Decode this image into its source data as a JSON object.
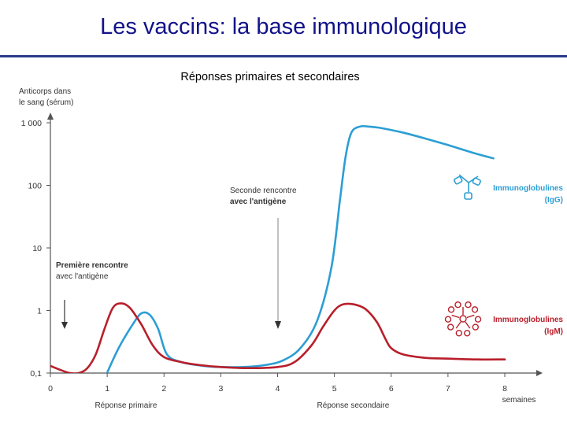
{
  "slide": {
    "title": "Les vaccins: la base immunologique"
  },
  "chart_data": {
    "type": "line",
    "title": "Réponses primaires et secondaires",
    "ylabel": [
      "Anticorps dans",
      "le sang (sérum)"
    ],
    "xlabel": "semaines",
    "y_scale": "log",
    "ylim": [
      0.1,
      1000
    ],
    "xlim": [
      0,
      8
    ],
    "x_ticks": [
      "0",
      "1",
      "2",
      "3",
      "4",
      "5",
      "6",
      "7",
      "8"
    ],
    "y_ticks": [
      {
        "value": 0.1,
        "label": "0,1"
      },
      {
        "value": 1,
        "label": "1"
      },
      {
        "value": 10,
        "label": "10"
      },
      {
        "value": 100,
        "label": "100"
      },
      {
        "value": 1000,
        "label": "1 000"
      }
    ],
    "phase_labels": [
      {
        "label": "Réponse primaire",
        "x": 1.33
      },
      {
        "label": "Réponse secondaire",
        "x": 5.33
      }
    ],
    "annotations": [
      {
        "lines": [
          "Première rencontre",
          "avec l'antigène"
        ],
        "x": 0.25
      },
      {
        "lines": [
          "Seconde rencontre",
          "avec l'antigène"
        ],
        "x": 4.0
      }
    ],
    "series": [
      {
        "name_lines": [
          "Immunoglobulines",
          "(IgG)"
        ],
        "color": "#2c9ed4",
        "x": [
          0.95,
          1.2,
          1.45,
          1.6,
          1.75,
          1.9,
          2.05,
          2.3,
          2.7,
          3.0,
          3.4,
          3.8,
          4.1,
          4.4,
          4.7,
          4.95,
          5.1,
          5.2,
          5.3,
          5.45,
          5.6,
          5.8,
          6.2,
          6.6,
          7.0,
          7.4,
          7.8
        ],
        "y": [
          0.08,
          0.25,
          0.6,
          0.9,
          0.85,
          0.5,
          0.2,
          0.15,
          0.13,
          0.125,
          0.125,
          0.135,
          0.16,
          0.25,
          0.7,
          5,
          60,
          300,
          700,
          870,
          870,
          830,
          700,
          560,
          440,
          340,
          270
        ]
      },
      {
        "name_lines": [
          "Immunoglobulines",
          "(IgM)"
        ],
        "color": "#b81f2b",
        "x": [
          0,
          0.2,
          0.35,
          0.5,
          0.65,
          0.8,
          0.95,
          1.1,
          1.25,
          1.4,
          1.6,
          1.8,
          2.0,
          2.3,
          2.6,
          3.0,
          3.5,
          4.0,
          4.3,
          4.6,
          4.8,
          5.0,
          5.15,
          5.35,
          5.55,
          5.75,
          5.9,
          6.0,
          6.2,
          6.6,
          7.0,
          7.5,
          8.0
        ],
        "y": [
          0.13,
          0.11,
          0.1,
          0.1,
          0.12,
          0.2,
          0.5,
          1.1,
          1.3,
          1.1,
          0.6,
          0.28,
          0.18,
          0.15,
          0.135,
          0.125,
          0.12,
          0.125,
          0.15,
          0.28,
          0.55,
          1.0,
          1.25,
          1.25,
          1.05,
          0.65,
          0.35,
          0.25,
          0.2,
          0.175,
          0.17,
          0.165,
          0.165
        ]
      }
    ]
  }
}
